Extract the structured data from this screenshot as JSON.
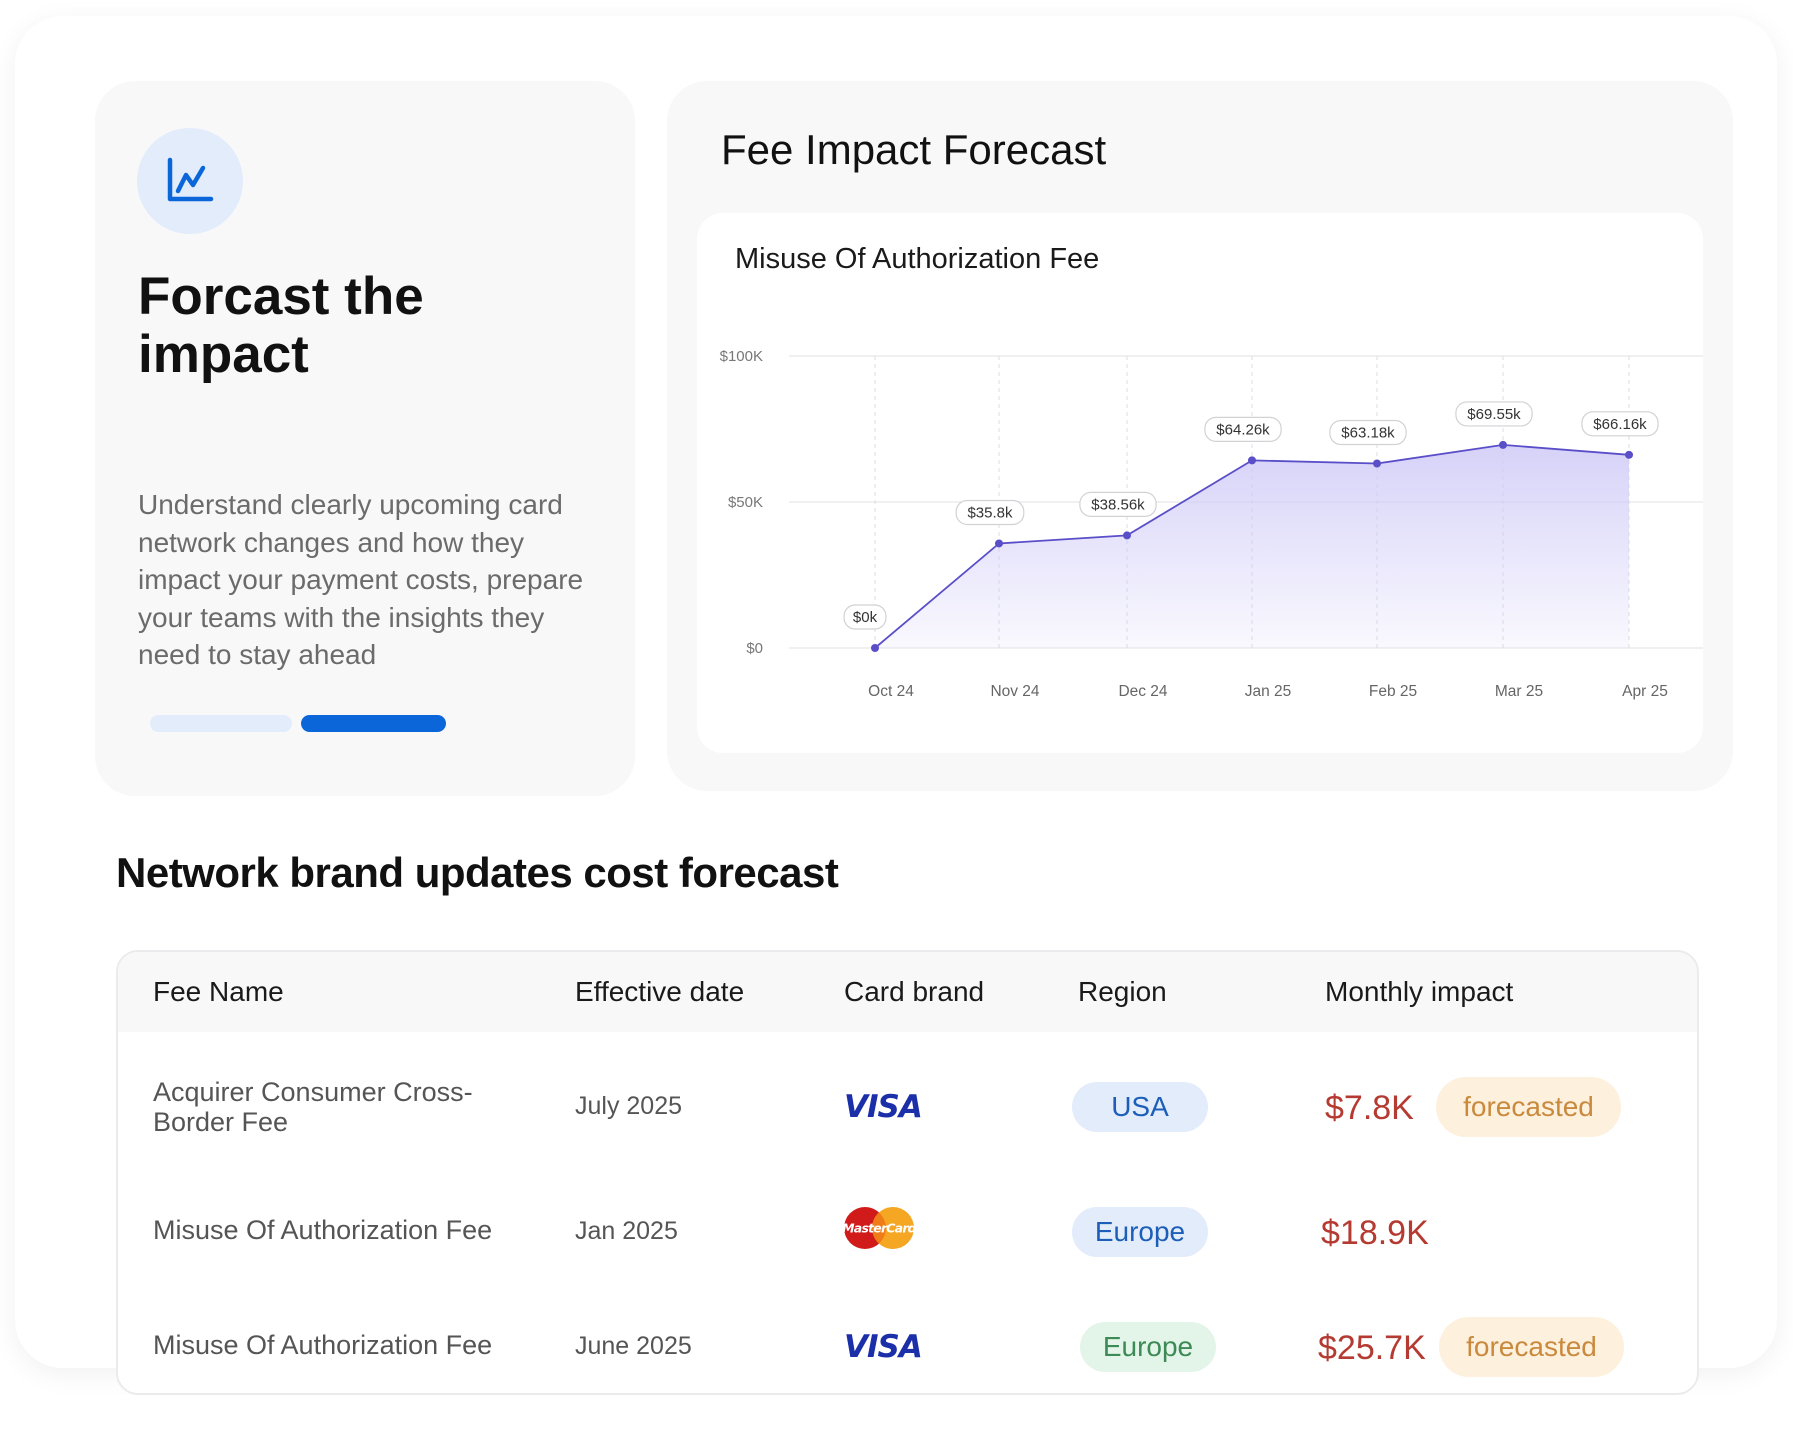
{
  "left_card": {
    "icon": "line-chart-icon",
    "title": "Forcast the impact",
    "description": "Understand clearly upcoming card network changes and how they impact your payment costs, prepare your teams with the insights they need to stay ahead",
    "progress_steps": 2,
    "progress_active_step": 2
  },
  "right_card": {
    "title": "Fee Impact Forecast"
  },
  "chart_data": {
    "type": "area",
    "title": "Misuse Of Authorization Fee",
    "xlabel": "",
    "ylabel": "",
    "categories": [
      "Oct 24",
      "Nov 24",
      "Dec 24",
      "Jan 25",
      "Feb 25",
      "Mar 25",
      "Apr 25"
    ],
    "values": [
      0,
      35.8,
      38.56,
      64.26,
      63.18,
      69.55,
      66.16
    ],
    "data_labels": [
      "$0k",
      "$35.8k",
      "$38.56k",
      "$64.26k",
      "$63.18k",
      "$69.55k",
      "$66.16k"
    ],
    "y_ticks": [
      {
        "value": 0,
        "label": "$0"
      },
      {
        "value": 50,
        "label": "$50K"
      },
      {
        "value": 100,
        "label": "$100K"
      }
    ],
    "ylim": [
      0,
      100
    ],
    "unit": "thousands USD",
    "grid": true,
    "line_color": "#5a4fc8",
    "fill_color": "#cfcaf7"
  },
  "section": {
    "title": "Network brand updates cost forecast"
  },
  "table": {
    "headers": {
      "fee_name": "Fee Name",
      "effective_date": "Effective date",
      "card_brand": "Card brand",
      "region": "Region",
      "monthly_impact": "Monthly impact"
    },
    "rows": [
      {
        "fee_name": "Acquirer Consumer Cross-Border Fee",
        "effective_date": "July 2025",
        "card_brand": "VISA",
        "region": "USA",
        "region_color": "blue",
        "monthly_impact": "$7.8K",
        "tag": "forecasted"
      },
      {
        "fee_name": "Misuse Of Authorization Fee",
        "effective_date": "Jan 2025",
        "card_brand": "MasterCard",
        "region": "Europe",
        "region_color": "blue",
        "monthly_impact": "$18.9K",
        "tag": ""
      },
      {
        "fee_name": "Misuse Of Authorization Fee",
        "effective_date": "June 2025",
        "card_brand": "VISA",
        "region": "Europe",
        "region_color": "green",
        "monthly_impact": "$25.7K",
        "tag": "forecasted"
      }
    ]
  },
  "colors": {
    "accent_blue": "#0b67d9",
    "amount_red": "#b53a32",
    "forecast_orange": "#c98a3e"
  }
}
